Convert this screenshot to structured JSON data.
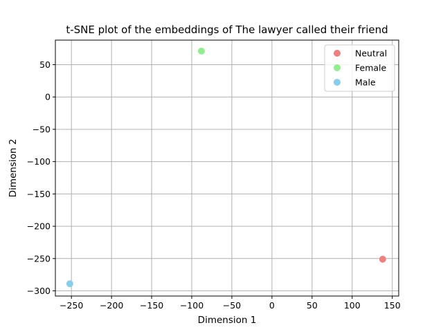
{
  "chart_data": {
    "type": "scatter",
    "title": "t-SNE plot of the embeddings of The lawyer called their friend",
    "xlabel": "Dimension 1",
    "ylabel": "Dimension 2",
    "xlim": [
      -270,
      158
    ],
    "ylim": [
      -308,
      88
    ],
    "xticks": [
      -250,
      -200,
      -150,
      -100,
      -50,
      0,
      50,
      100,
      150
    ],
    "yticks": [
      50,
      0,
      -50,
      -100,
      -150,
      -200,
      -250,
      -300
    ],
    "grid": true,
    "legend_position": "top-right",
    "series": [
      {
        "name": "Neutral",
        "color": "#f08080",
        "points": [
          {
            "x": 138,
            "y": -251
          }
        ]
      },
      {
        "name": "Female",
        "color": "#90ee90",
        "points": [
          {
            "x": -88,
            "y": 71
          }
        ]
      },
      {
        "name": "Male",
        "color": "#87ceeb",
        "points": [
          {
            "x": -252,
            "y": -289
          }
        ]
      }
    ]
  }
}
